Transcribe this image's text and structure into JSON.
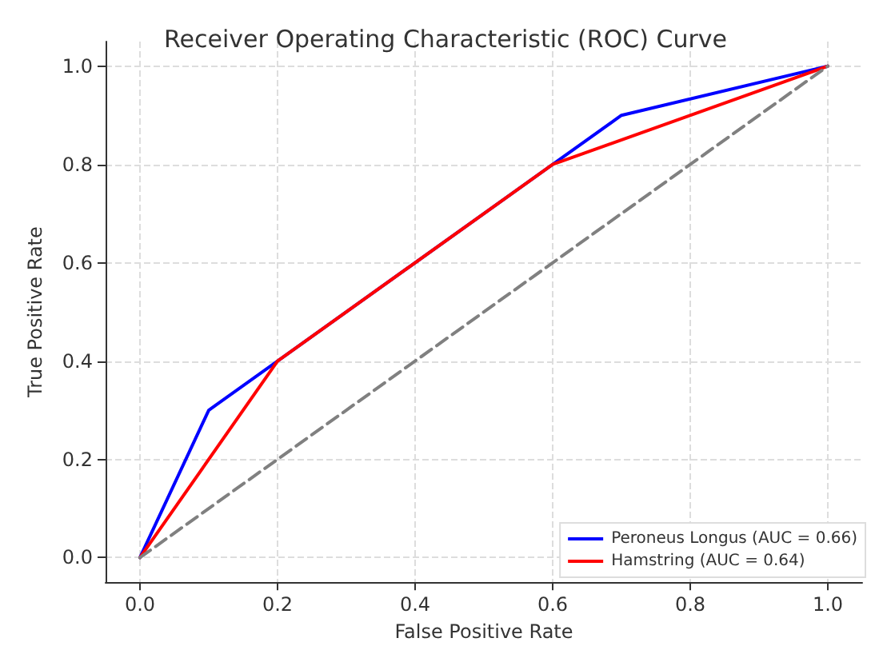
{
  "chart_data": {
    "type": "line",
    "title": "Receiver Operating Characteristic (ROC) Curve",
    "xlabel": "False Positive Rate",
    "ylabel": "True Positive Rate",
    "series": [
      {
        "name": "Peroneus Longus (AUC = 0.66)",
        "color": "#0000ff",
        "x": [
          0,
          0.1,
          0.2,
          0.6,
          0.7,
          1
        ],
        "values": [
          0,
          0.3,
          0.4,
          0.8,
          0.9,
          1
        ]
      },
      {
        "name": "Hamstring (AUC = 0.64)",
        "color": "#ff0000",
        "x": [
          0,
          0.2,
          0.6,
          1
        ],
        "values": [
          0,
          0.4,
          0.8,
          1
        ]
      },
      {
        "color": "#808080",
        "x": [
          0,
          1
        ],
        "values": [
          0,
          1
        ],
        "line_style": "dashed"
      }
    ],
    "xlim": [
      -0.05,
      1.05
    ],
    "ylim": [
      -0.05,
      1.05
    ],
    "xticks": [
      {
        "value": 0,
        "label": "0.0"
      },
      {
        "value": 0.2,
        "label": "0.2"
      },
      {
        "value": 0.4,
        "label": "0.4"
      },
      {
        "value": 0.6,
        "label": "0.6"
      },
      {
        "value": 0.8,
        "label": "0.8"
      },
      {
        "value": 1,
        "label": "1.0"
      }
    ],
    "yticks": [
      {
        "value": 0,
        "label": "0.0"
      },
      {
        "value": 0.2,
        "label": "0.2"
      },
      {
        "value": 0.4,
        "label": "0.4"
      },
      {
        "value": 0.6,
        "label": "0.6"
      },
      {
        "value": 0.8,
        "label": "0.8"
      },
      {
        "value": 1,
        "label": "1.0"
      }
    ],
    "grid": true,
    "legend": "bottom right",
    "marker": "none",
    "line_style": "solid"
  }
}
